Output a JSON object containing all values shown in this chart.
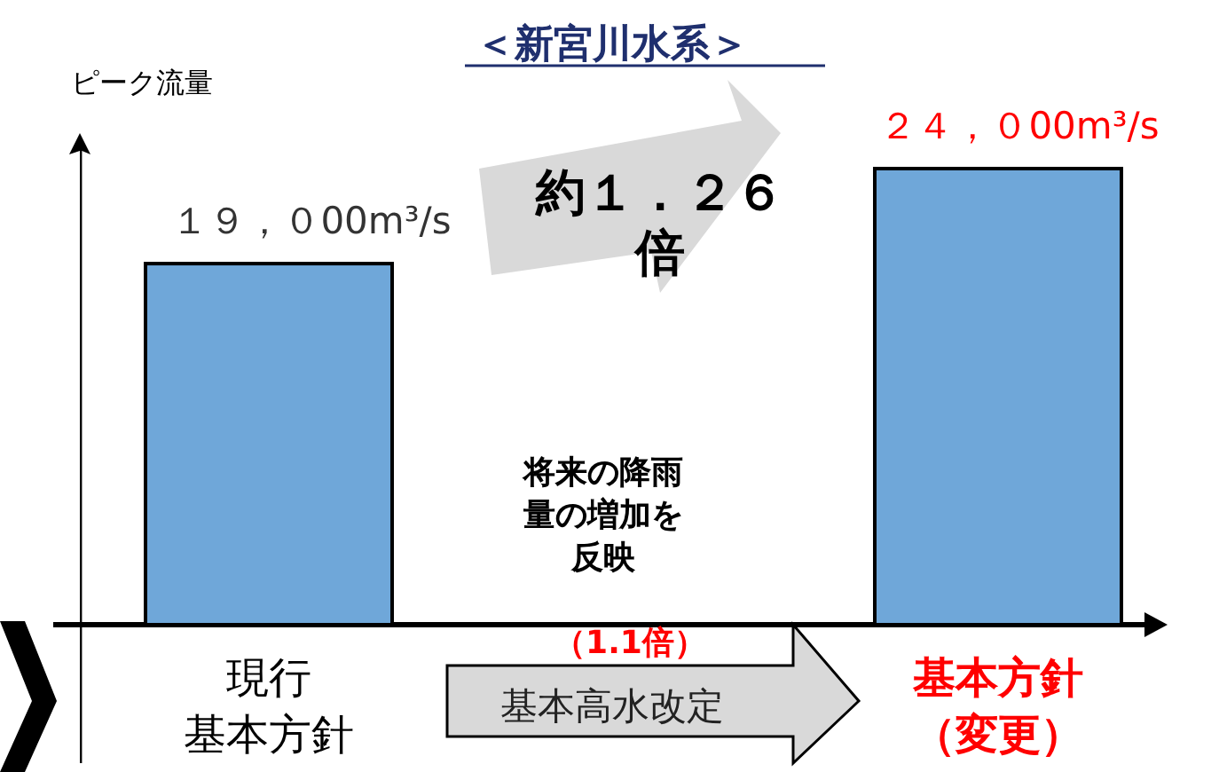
{
  "chart_data": {
    "type": "bar",
    "title": "＜新宮川水系＞",
    "ylabel": "ピーク流量",
    "categories": [
      "現行基本方針",
      "基本方針（変更）"
    ],
    "values": [
      19000,
      24000
    ],
    "color": "#6fa7d9",
    "value_labels": [
      "１９，０00m³/s",
      "２４，０00m³/s"
    ],
    "annotations": [
      "約１．２６倍",
      "将来の降雨量の増加を反映",
      "（1.1倍）",
      "基本高水改定"
    ]
  }
}
